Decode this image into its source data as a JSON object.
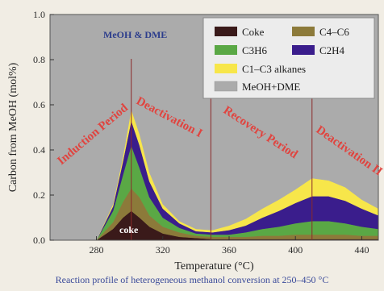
{
  "chart_data": {
    "type": "area",
    "stacked": true,
    "xlabel": "Temperature (°C)",
    "ylabel": "Carbon from MeOH (mol%)",
    "xlim": [
      252,
      450
    ],
    "ylim": [
      0,
      1.0
    ],
    "x_ticks": [
      280,
      320,
      360,
      400,
      440
    ],
    "x_tick_labels": [
      "280",
      "320",
      "360",
      "400",
      "440"
    ],
    "y_ticks": [
      0.0,
      0.2,
      0.4,
      0.6,
      0.8,
      1.0
    ],
    "y_tick_labels": [
      "0.0",
      "0.2",
      "0.4",
      "0.6",
      "0.8",
      "1.0"
    ],
    "x": [
      252,
      270,
      280,
      290,
      296,
      301,
      306,
      312,
      320,
      330,
      340,
      350,
      360,
      370,
      380,
      390,
      400,
      410,
      420,
      430,
      440,
      450
    ],
    "series": [
      {
        "name": "Coke",
        "color": "#3a1a1a",
        "values": [
          0,
          0,
          0,
          0.05,
          0.1,
          0.13,
          0.1,
          0.06,
          0.03,
          0.015,
          0.01,
          0.005,
          0.005,
          0.005,
          0.005,
          0.005,
          0.005,
          0.005,
          0.005,
          0.005,
          0.005,
          0.005
        ]
      },
      {
        "name": "C4–C6",
        "color": "#8c7a3a",
        "values": [
          0,
          0,
          0,
          0.03,
          0.07,
          0.1,
          0.09,
          0.05,
          0.03,
          0.02,
          0.01,
          0.01,
          0.01,
          0.01,
          0.015,
          0.015,
          0.02,
          0.02,
          0.02,
          0.02,
          0.015,
          0.015
        ]
      },
      {
        "name": "C3H6",
        "color": "#5aa845",
        "values": [
          0,
          0,
          0,
          0.05,
          0.12,
          0.19,
          0.13,
          0.08,
          0.04,
          0.02,
          0.01,
          0.01,
          0.01,
          0.02,
          0.03,
          0.04,
          0.05,
          0.06,
          0.06,
          0.05,
          0.04,
          0.03
        ]
      },
      {
        "name": "C2H4",
        "color": "#3a1d8c",
        "values": [
          0,
          0,
          0,
          0.02,
          0.06,
          0.11,
          0.1,
          0.07,
          0.04,
          0.02,
          0.01,
          0.01,
          0.02,
          0.03,
          0.05,
          0.07,
          0.09,
          0.11,
          0.11,
          0.1,
          0.08,
          0.06
        ]
      },
      {
        "name": "C1–C3 alkanes",
        "color": "#f7e64a",
        "values": [
          0,
          0,
          0,
          0.01,
          0.02,
          0.05,
          0.05,
          0.04,
          0.02,
          0.01,
          0.01,
          0.01,
          0.02,
          0.03,
          0.04,
          0.05,
          0.06,
          0.08,
          0.07,
          0.06,
          0.04,
          0.03
        ]
      },
      {
        "name": "MeOH+DME",
        "color": "#ababab",
        "fill_to_top": true,
        "values": [
          1,
          1,
          1,
          0.84,
          0.63,
          0.42,
          0.53,
          0.7,
          0.84,
          0.915,
          0.95,
          0.955,
          0.935,
          0.905,
          0.86,
          0.815,
          0.775,
          0.725,
          0.735,
          0.765,
          0.82,
          0.86
        ]
      }
    ],
    "legend": {
      "position": "top-right",
      "rows": [
        [
          "Coke",
          "C4–C6"
        ],
        [
          "C3H6",
          "C2H4"
        ],
        [
          "C1–C3 alkanes"
        ],
        [
          "MeOH+DME"
        ]
      ]
    },
    "dividers_x": [
      301,
      349,
      410
    ],
    "annotations": {
      "region_label": "MeOH & DME",
      "coke_label": "coke",
      "periods": [
        "Induction Period",
        "Deactivation I",
        "Recovery Period",
        "Deactivation II"
      ]
    },
    "colors": {
      "plot_background": "#ababab",
      "divider": "#8b2a2a",
      "period_text": "#e0443f"
    }
  },
  "caption": "Reaction profile of heterogeneous methanol conversion at 250–450 °C"
}
